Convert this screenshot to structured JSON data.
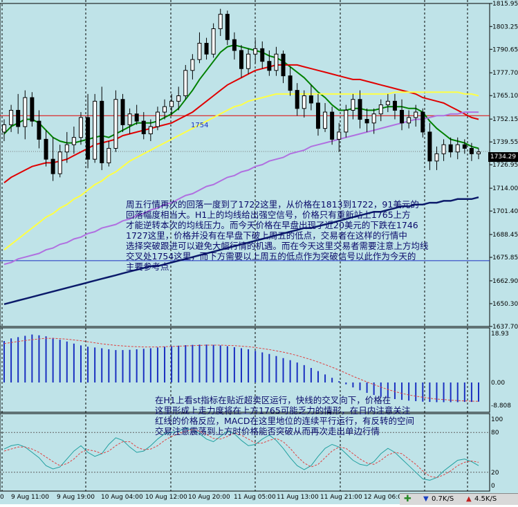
{
  "price_axis_labels": [
    "1815.95",
    "1803.25",
    "1790.65",
    "1777.70",
    "1765.10",
    "1752.15",
    "1739.55",
    "1726.95",
    "1714.00",
    "1701.40",
    "1688.45",
    "1675.85",
    "1662.90",
    "1650.30",
    "1637.70"
  ],
  "current_price": "1734.29",
  "level_label": "1754",
  "macd_axis_labels": [
    "18.93",
    "0.00",
    "-8.808"
  ],
  "stoch_axis_labels": [
    "100",
    "80",
    "20",
    "0"
  ],
  "time_labels": [
    "0",
    "9 Aug 11:00",
    "9 Aug 19:00",
    "10 Aug 04:00",
    "10 Aug 12:00",
    "10 Aug 20:00",
    "11 Aug 05:00",
    "11 Aug 13:00",
    "11 Aug 21:00",
    "12 Aug 06:0"
  ],
  "annotation_main": [
    "周五行情再次的回落一度到了1722这里，从价格在1813到1722，91美元的",
    "回落幅度相当大。H1上的均线给出强空信号，价格只有重新站上1765上方",
    "才能逆转本次的均线压力。而今天价格在早盘出现了近20美元的下跌在1746",
    "1727这里，价格并没有在早盘下破上周五的低点，交易者在这样的行情中",
    "选择突破跟进可以避免大幅行情的机遇。而在今天这里交易者需要注意上方均线",
    "交叉处1754这里，而下方需要以上周五的低点作为突破信号以此作为今天的",
    "主要参考点"
  ],
  "annotation_lower": [
    "在H1上看st指标在贴近超卖区运行，快线的交叉向下，价格在",
    "这里形成上走力度将在上方1765可能乏力的情形，在日内注意关注",
    "红线的价格反应，MACD在这里地位的连续平行运行，有反转的空间",
    "交易注意震荡到上方时价格能否突破从而再次走出单边行情"
  ],
  "status": {
    "download": "0.7K/S",
    "upload": "4.5K/S"
  },
  "colors": {
    "background": "#bfe3e8",
    "candle": "#000000",
    "ma_green": "#008000",
    "ma_red": "#e00000",
    "ma_yellow": "#ffff44",
    "ma_violet": "#b070e0",
    "ma_navy": "#0b1a6a",
    "macd_bar": "#1a2fc0",
    "signal": "#e04040",
    "stoch_main": "#20a0a0"
  },
  "chart_data": [
    {
      "type": "line",
      "title": "",
      "ylim": [
        1637.7,
        1815.95
      ],
      "ohlc": [
        [
          1745,
          1752,
          1740,
          1749
        ],
        [
          1749,
          1760,
          1745,
          1757
        ],
        [
          1757,
          1766,
          1744,
          1748
        ],
        [
          1748,
          1768,
          1741,
          1764
        ],
        [
          1764,
          1767,
          1748,
          1751
        ],
        [
          1751,
          1757,
          1736,
          1741
        ],
        [
          1741,
          1746,
          1726,
          1730
        ],
        [
          1730,
          1742,
          1718,
          1722
        ],
        [
          1722,
          1738,
          1720,
          1734
        ],
        [
          1734,
          1745,
          1728,
          1738
        ],
        [
          1738,
          1748,
          1733,
          1742
        ],
        [
          1742,
          1756,
          1738,
          1753
        ],
        [
          1753,
          1766,
          1725,
          1730
        ],
        [
          1730,
          1766,
          1728,
          1762
        ],
        [
          1762,
          1770,
          1724,
          1728
        ],
        [
          1728,
          1740,
          1726,
          1736
        ],
        [
          1736,
          1768,
          1734,
          1763
        ],
        [
          1763,
          1766,
          1745,
          1749
        ],
        [
          1749,
          1758,
          1744,
          1755
        ],
        [
          1755,
          1760,
          1749,
          1751
        ],
        [
          1751,
          1756,
          1741,
          1744
        ],
        [
          1744,
          1752,
          1740,
          1748
        ],
        [
          1748,
          1759,
          1746,
          1756
        ],
        [
          1756,
          1763,
          1752,
          1759
        ],
        [
          1759,
          1766,
          1754,
          1762
        ],
        [
          1762,
          1770,
          1757,
          1765
        ],
        [
          1765,
          1782,
          1763,
          1779
        ],
        [
          1779,
          1788,
          1774,
          1785
        ],
        [
          1785,
          1800,
          1783,
          1794
        ],
        [
          1794,
          1797,
          1785,
          1788
        ],
        [
          1788,
          1805,
          1786,
          1802
        ],
        [
          1802,
          1813,
          1798,
          1810
        ],
        [
          1810,
          1812,
          1793,
          1796
        ],
        [
          1796,
          1800,
          1785,
          1790
        ],
        [
          1790,
          1793,
          1775,
          1780
        ],
        [
          1780,
          1791,
          1777,
          1788
        ],
        [
          1788,
          1796,
          1783,
          1791
        ],
        [
          1791,
          1795,
          1780,
          1784
        ],
        [
          1784,
          1790,
          1776,
          1779
        ],
        [
          1779,
          1792,
          1776,
          1788
        ],
        [
          1788,
          1790,
          1772,
          1776
        ],
        [
          1776,
          1781,
          1765,
          1768
        ],
        [
          1768,
          1772,
          1754,
          1758
        ],
        [
          1758,
          1768,
          1753,
          1765
        ],
        [
          1765,
          1771,
          1757,
          1761
        ],
        [
          1761,
          1766,
          1743,
          1747
        ],
        [
          1747,
          1761,
          1745,
          1756
        ],
        [
          1756,
          1759,
          1738,
          1741
        ],
        [
          1741,
          1750,
          1734,
          1745
        ],
        [
          1745,
          1760,
          1742,
          1757
        ],
        [
          1757,
          1766,
          1752,
          1763
        ],
        [
          1763,
          1768,
          1747,
          1752
        ],
        [
          1752,
          1758,
          1745,
          1750
        ],
        [
          1750,
          1758,
          1744,
          1755
        ],
        [
          1755,
          1763,
          1751,
          1760
        ],
        [
          1760,
          1766,
          1756,
          1762
        ],
        [
          1762,
          1766,
          1752,
          1757
        ],
        [
          1757,
          1763,
          1746,
          1750
        ],
        [
          1750,
          1757,
          1747,
          1753
        ],
        [
          1753,
          1760,
          1748,
          1756
        ],
        [
          1756,
          1758,
          1742,
          1745
        ],
        [
          1745,
          1750,
          1724,
          1729
        ],
        [
          1729,
          1737,
          1724,
          1733
        ],
        [
          1733,
          1741,
          1729,
          1738
        ],
        [
          1738,
          1742,
          1731,
          1734
        ],
        [
          1734,
          1742,
          1730,
          1738
        ],
        [
          1738,
          1741,
          1733,
          1736
        ],
        [
          1736,
          1739,
          1729,
          1733
        ],
        [
          1733,
          1736,
          1730,
          1734
        ]
      ],
      "series": [
        {
          "name": "",
          "color": "#008000",
          "values": [
            1744,
            1748,
            1750,
            1752,
            1752,
            1750,
            1746,
            1742,
            1740,
            1739,
            1739,
            1740,
            1741,
            1742,
            1743,
            1742,
            1744,
            1746,
            1748,
            1750,
            1750,
            1750,
            1751,
            1753,
            1755,
            1758,
            1763,
            1768,
            1774,
            1779,
            1784,
            1789,
            1792,
            1793,
            1792,
            1791,
            1790,
            1789,
            1787,
            1786,
            1784,
            1781,
            1778,
            1775,
            1771,
            1767,
            1764,
            1760,
            1757,
            1757,
            1758,
            1758,
            1757,
            1757,
            1758,
            1759,
            1759,
            1759,
            1758,
            1758,
            1756,
            1751,
            1747,
            1744,
            1741,
            1740,
            1739,
            1737,
            1736
          ]
        },
        {
          "name": "",
          "color": "#e00000",
          "values": [
            1717,
            1720,
            1722,
            1724,
            1726,
            1727,
            1728,
            1728,
            1729,
            1730,
            1732,
            1734,
            1736,
            1738,
            1739,
            1740,
            1741,
            1743,
            1744,
            1745,
            1746,
            1747,
            1748,
            1749,
            1750,
            1752,
            1754,
            1756,
            1759,
            1762,
            1765,
            1768,
            1771,
            1773,
            1775,
            1777,
            1779,
            1780,
            1781,
            1782,
            1782,
            1782,
            1782,
            1781,
            1780,
            1779,
            1778,
            1777,
            1776,
            1775,
            1774,
            1774,
            1773,
            1772,
            1771,
            1770,
            1769,
            1768,
            1767,
            1766,
            1764,
            1763,
            1762,
            1761,
            1759,
            1757,
            1755,
            1753,
            1752
          ]
        },
        {
          "name": "",
          "color": "#ffff44",
          "values": [
            1680,
            1683,
            1686,
            1689,
            1692,
            1695,
            1698,
            1700,
            1703,
            1705,
            1708,
            1710,
            1713,
            1716,
            1718,
            1721,
            1723,
            1726,
            1729,
            1731,
            1733,
            1735,
            1737,
            1739,
            1741,
            1743,
            1745,
            1747,
            1749,
            1751,
            1753,
            1755,
            1757,
            1759,
            1760,
            1762,
            1763,
            1764,
            1765,
            1766,
            1766,
            1766,
            1766,
            1766,
            1766,
            1766,
            1766,
            1766,
            1766,
            1766,
            1766,
            1766,
            1766,
            1766,
            1766,
            1766,
            1767,
            1767,
            1767,
            1767,
            1767,
            1767,
            1767,
            1767,
            1767,
            1767,
            1766,
            1766,
            1765
          ]
        },
        {
          "name": "",
          "color": "#b070e0",
          "values": [
            1672,
            1673,
            1675,
            1676,
            1677,
            1678,
            1680,
            1681,
            1683,
            1684,
            1686,
            1687,
            1689,
            1690,
            1692,
            1693,
            1694,
            1696,
            1697,
            1699,
            1700,
            1702,
            1703,
            1705,
            1706,
            1708,
            1710,
            1711,
            1713,
            1715,
            1716,
            1718,
            1720,
            1721,
            1723,
            1724,
            1726,
            1727,
            1729,
            1730,
            1731,
            1733,
            1734,
            1735,
            1737,
            1738,
            1739,
            1740,
            1741,
            1742,
            1743,
            1744,
            1745,
            1746,
            1747,
            1748,
            1749,
            1750,
            1751,
            1752,
            1752,
            1753,
            1754,
            1754,
            1755,
            1755,
            1756,
            1756,
            1756
          ]
        },
        {
          "name": "",
          "color": "#0b1a6a",
          "values": [
            1650,
            1651,
            1652,
            1653,
            1654,
            1655,
            1656,
            1657,
            1658,
            1659,
            1660,
            1661,
            1662,
            1663,
            1664,
            1665,
            1666,
            1667,
            1668,
            1669,
            1670,
            1671,
            1671,
            1672,
            1673,
            1674,
            1675,
            1676,
            1677,
            1678,
            1679,
            1680,
            1681,
            1682,
            1683,
            1684,
            1685,
            1686,
            1687,
            1688,
            1689,
            1690,
            1691,
            1692,
            1692,
            1693,
            1694,
            1695,
            1696,
            1697,
            1698,
            1699,
            1700,
            1701,
            1701,
            1702,
            1703,
            1704,
            1704,
            1705,
            1705,
            1706,
            1706,
            1707,
            1707,
            1708,
            1708,
            1708,
            1709
          ]
        }
      ],
      "hlines": [
        {
          "value": 1754,
          "color": "#e00000"
        },
        {
          "value": 1674,
          "color": "#1a2fc0"
        }
      ]
    },
    {
      "type": "bar",
      "title": "",
      "ylim": [
        -8.808,
        18.93
      ],
      "values": [
        16,
        17,
        17.5,
        18,
        18.5,
        18.2,
        17.8,
        17.2,
        16.5,
        15.8,
        15,
        14.3,
        13.8,
        13.5,
        13.2,
        12.8,
        12.5,
        12.5,
        12.6,
        12.8,
        13,
        13.2,
        13.5,
        13.8,
        14,
        14.2,
        14.4,
        14.5,
        14.6,
        14.6,
        14.5,
        14.3,
        14,
        13.6,
        13.2,
        12.8,
        12.2,
        11.6,
        11,
        10.2,
        9.4,
        8.6,
        7.7,
        6.7,
        5.6,
        4.4,
        3.1,
        1.8,
        0.5,
        -0.7,
        -1.9,
        -3,
        -4,
        -4.8,
        -5.5,
        -6,
        -6.4,
        -6.7,
        -7,
        -7.2,
        -7.4,
        -7.5,
        -7.6,
        -7.6,
        -7.6,
        -7.6,
        -7.5,
        -7.5,
        -7.4
      ],
      "signal": [
        15,
        15.4,
        15.8,
        16.2,
        16.5,
        16.8,
        17,
        17,
        16.9,
        16.7,
        16.4,
        16.1,
        15.7,
        15.3,
        14.9,
        14.6,
        14.3,
        14.1,
        13.9,
        13.8,
        13.7,
        13.7,
        13.7,
        13.8,
        13.9,
        14,
        14.1,
        14.2,
        14.3,
        14.4,
        14.4,
        14.4,
        14.3,
        14.2,
        14,
        13.8,
        13.5,
        13.1,
        12.7,
        12.2,
        11.7,
        11.1,
        10.4,
        9.6,
        8.8,
        7.9,
        6.9,
        5.9,
        4.8,
        3.6,
        2.4,
        1.3,
        0.2,
        -0.8,
        -1.8,
        -2.7,
        -3.5,
        -4.2,
        -4.8,
        -5.3,
        -5.7,
        -6.1,
        -6.4,
        -6.6,
        -6.8,
        -7,
        -7.1,
        -7.2,
        -7.3
      ]
    },
    {
      "type": "line",
      "title": "",
      "ylim": [
        0,
        100
      ],
      "series": [
        {
          "name": "",
          "color": "#20a0a0",
          "values": [
            55,
            60,
            62,
            58,
            50,
            42,
            30,
            25,
            28,
            40,
            52,
            60,
            50,
            44,
            48,
            62,
            72,
            68,
            58,
            50,
            52,
            60,
            70,
            78,
            80,
            82,
            86,
            84,
            78,
            70,
            66,
            74,
            82,
            78,
            68,
            60,
            62,
            70,
            76,
            68,
            56,
            42,
            30,
            24,
            30,
            44,
            56,
            62,
            58,
            48,
            38,
            32,
            30,
            36,
            48,
            56,
            50,
            40,
            30,
            20,
            10,
            8,
            12,
            22,
            30,
            38,
            40,
            36,
            30
          ]
        },
        {
          "name": "",
          "color": "#e04040",
          "values": [
            52,
            55,
            58,
            58,
            55,
            50,
            43,
            36,
            30,
            33,
            40,
            50,
            54,
            52,
            48,
            52,
            60,
            66,
            66,
            58,
            54,
            55,
            60,
            68,
            74,
            78,
            82,
            84,
            82,
            77,
            71,
            70,
            74,
            79,
            76,
            70,
            64,
            64,
            68,
            71,
            66,
            56,
            44,
            34,
            28,
            32,
            42,
            52,
            58,
            56,
            48,
            40,
            34,
            32,
            38,
            46,
            50,
            48,
            40,
            32,
            22,
            14,
            12,
            16,
            22,
            30,
            35,
            37,
            35
          ]
        }
      ]
    }
  ]
}
